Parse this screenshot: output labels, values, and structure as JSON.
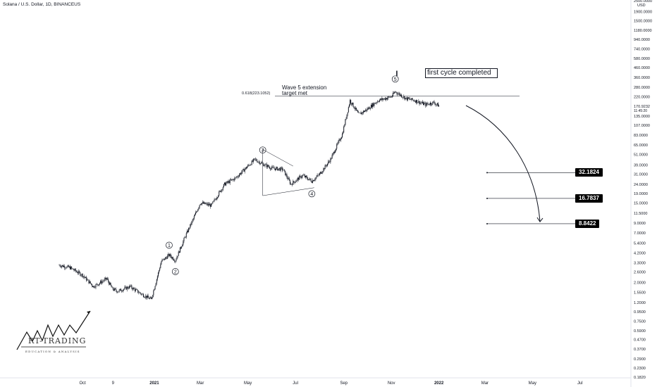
{
  "header": {
    "symbol": "Solana / U.S. Dollar, 1D, BINANCEUS"
  },
  "price_scale": {
    "currency": "USD",
    "last_price": "170.9232",
    "countdown": "11:45:20",
    "labels": [
      "2500.0000",
      "1900.0000",
      "1500.0000",
      "1180.0000",
      "940.0000",
      "740.0000",
      "580.0000",
      "460.0000",
      "360.0000",
      "280.0000",
      "220.0000",
      "135.0000",
      "107.0000",
      "83.0000",
      "65.0000",
      "51.0000",
      "39.0000",
      "31.0000",
      "24.0000",
      "19.0000",
      "15.0000",
      "11.5000",
      "9.0000",
      "7.0000",
      "5.4000",
      "4.2000",
      "3.3000",
      "2.6000",
      "2.0000",
      "1.5500",
      "1.2000",
      "0.9500",
      "0.7500",
      "0.5900",
      "0.4700",
      "0.3700",
      "0.2900",
      "0.2300",
      "0.1820"
    ]
  },
  "time_axis": {
    "labels": [
      "Oct",
      "9",
      "2021",
      "Mar",
      "May",
      "Jul",
      "Sep",
      "Nov",
      "2022",
      "Mar",
      "May",
      "Jul"
    ]
  },
  "annotations": {
    "wave_labels": [
      "1",
      "2",
      "3",
      "4",
      "5"
    ],
    "wave5_text_line1": "Wave 5 extension",
    "wave5_text_line2": "target met",
    "fib_label": "0.618(223.1052)",
    "cycle_text": "first cycle completed",
    "cycle_marker": "I",
    "targets": [
      "32.1824",
      "16.7837",
      "8.8422"
    ]
  },
  "logo": {
    "name": "RT-TRADING",
    "tagline": "EDUCATION & ANALYSIS"
  },
  "colors": {
    "candles": "#131722",
    "background": "#ffffff",
    "badge": "#000000"
  },
  "chart_data": {
    "type": "candlestick",
    "title": "",
    "y_scale": "log",
    "ylim": [
      0.182,
      2500
    ],
    "x_range": [
      "2020-09-01",
      "2022-07-31"
    ],
    "grid": false,
    "series": [
      {
        "name": "Solana / U.S. Dollar",
        "x": [
          "2020-09-01",
          "2020-09-15",
          "2020-10-01",
          "2020-10-15",
          "2020-11-01",
          "2020-11-08",
          "2020-11-15",
          "2020-12-01",
          "2020-12-15",
          "2020-12-28",
          "2021-01-10",
          "2021-01-20",
          "2021-01-28",
          "2021-02-10",
          "2021-02-20",
          "2021-03-01",
          "2021-03-15",
          "2021-04-01",
          "2021-04-15",
          "2021-05-01",
          "2021-05-10",
          "2021-05-20",
          "2021-06-01",
          "2021-06-15",
          "2021-06-25",
          "2021-07-10",
          "2021-07-22",
          "2021-08-01",
          "2021-08-15",
          "2021-08-30",
          "2021-09-09",
          "2021-09-20",
          "2021-10-01",
          "2021-10-15",
          "2021-11-01",
          "2021-11-06",
          "2021-11-20",
          "2021-12-01",
          "2021-12-15",
          "2021-12-25",
          "2022-01-01"
        ],
        "close": [
          3.1,
          2.9,
          2.4,
          1.8,
          2.2,
          1.7,
          1.6,
          1.8,
          1.5,
          1.3,
          3.4,
          4.0,
          3.5,
          6.5,
          10,
          15,
          14,
          24,
          28,
          38,
          45,
          40,
          36,
          35,
          24,
          30,
          26,
          31,
          45,
          85,
          200,
          140,
          160,
          200,
          220,
          250,
          210,
          200,
          180,
          190,
          175
        ]
      }
    ],
    "waves": [
      {
        "label": "1",
        "x": "2021-01-20",
        "y": 4.0
      },
      {
        "label": "2",
        "x": "2021-01-28",
        "y": 3.5
      },
      {
        "label": "3",
        "x": "2021-05-20",
        "y": 40
      },
      {
        "label": "4",
        "x": "2021-07-22",
        "y": 26
      },
      {
        "label": "5",
        "x": "2021-11-06",
        "y": 250
      }
    ],
    "fib_level": 223.1052,
    "targets": [
      32.1824,
      16.7837,
      8.8422
    ]
  }
}
